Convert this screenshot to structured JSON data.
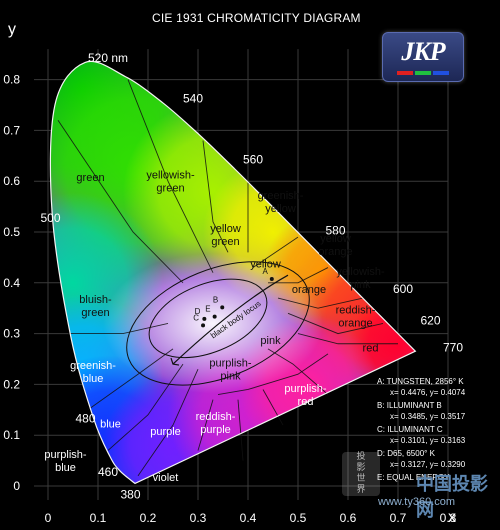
{
  "chart_data": {
    "type": "scatter",
    "title": "CIE 1931 CHROMATICITY DIAGRAM",
    "xlabel": "x",
    "ylabel": "y",
    "xlim": [
      0,
      0.8
    ],
    "ylim": [
      0,
      0.85
    ],
    "x_ticks": [
      "0",
      "0.1",
      "0.2",
      "0.3",
      "0.4",
      "0.5",
      "0.6",
      "0.7",
      "0.8"
    ],
    "y_ticks": [
      "0",
      "0.1",
      "0.2",
      "0.3",
      "0.4",
      "0.5",
      "0.6",
      "0.7",
      "0.8"
    ],
    "grid": true,
    "spectral_locus": [
      {
        "nm": 380,
        "x": 0.1741,
        "y": 0.005
      },
      {
        "nm": 460,
        "x": 0.144,
        "y": 0.0297
      },
      {
        "nm": 470,
        "x": 0.1241,
        "y": 0.0578
      },
      {
        "nm": 480,
        "x": 0.0913,
        "y": 0.1327
      },
      {
        "nm": 490,
        "x": 0.0454,
        "y": 0.295
      },
      {
        "nm": 500,
        "x": 0.0082,
        "y": 0.5384
      },
      {
        "nm": 510,
        "x": 0.0139,
        "y": 0.7502
      },
      {
        "nm": 520,
        "x": 0.0743,
        "y": 0.8338
      },
      {
        "nm": 530,
        "x": 0.1547,
        "y": 0.8059
      },
      {
        "nm": 540,
        "x": 0.2296,
        "y": 0.7543
      },
      {
        "nm": 550,
        "x": 0.3016,
        "y": 0.6923
      },
      {
        "nm": 560,
        "x": 0.3731,
        "y": 0.6245
      },
      {
        "nm": 570,
        "x": 0.4441,
        "y": 0.5547
      },
      {
        "nm": 580,
        "x": 0.5125,
        "y": 0.4866
      },
      {
        "nm": 590,
        "x": 0.5752,
        "y": 0.4242
      },
      {
        "nm": 600,
        "x": 0.627,
        "y": 0.3725
      },
      {
        "nm": 620,
        "x": 0.6915,
        "y": 0.3083
      },
      {
        "nm": 770,
        "x": 0.7347,
        "y": 0.2653
      }
    ],
    "wavelength_labels": [
      {
        "text": "520 nm",
        "x": 0.08,
        "y": 0.835
      },
      {
        "text": "540",
        "x": 0.27,
        "y": 0.755
      },
      {
        "text": "560",
        "x": 0.39,
        "y": 0.635
      },
      {
        "text": "580",
        "x": 0.555,
        "y": 0.495
      },
      {
        "text": "600",
        "x": 0.69,
        "y": 0.38
      },
      {
        "text": "620",
        "x": 0.745,
        "y": 0.318
      },
      {
        "text": "770",
        "x": 0.79,
        "y": 0.265
      },
      {
        "text": "500",
        "x": -0.015,
        "y": 0.52
      },
      {
        "text": "480",
        "x": 0.055,
        "y": 0.125
      },
      {
        "text": "460",
        "x": 0.1,
        "y": 0.02
      },
      {
        "text": "380",
        "x": 0.145,
        "y": -0.025
      }
    ],
    "regions": [
      {
        "name": "green",
        "x": 0.085,
        "y": 0.6
      },
      {
        "name": "yellowish-green",
        "x": 0.245,
        "y": 0.605
      },
      {
        "name": "yellow green",
        "x": 0.355,
        "y": 0.5
      },
      {
        "name": "greenish-yellow",
        "x": 0.465,
        "y": 0.565
      },
      {
        "name": "yellow",
        "x": 0.435,
        "y": 0.43
      },
      {
        "name": "yellow orange",
        "x": 0.575,
        "y": 0.48
      },
      {
        "name": "yellowish-pink",
        "x": 0.625,
        "y": 0.415
      },
      {
        "name": "orange",
        "x": 0.522,
        "y": 0.38
      },
      {
        "name": "reddish-orange",
        "x": 0.615,
        "y": 0.34
      },
      {
        "name": "bluish-green",
        "x": 0.095,
        "y": 0.36
      },
      {
        "name": "pink",
        "x": 0.445,
        "y": 0.28
      },
      {
        "name": "red",
        "x": 0.645,
        "y": 0.265
      },
      {
        "name": "purplish-pink",
        "x": 0.365,
        "y": 0.235
      },
      {
        "name": "purplish-red",
        "x": 0.515,
        "y": 0.185
      },
      {
        "name": "greenish-blue",
        "x": 0.09,
        "y": 0.23
      },
      {
        "name": "reddish-purple",
        "x": 0.335,
        "y": 0.13
      },
      {
        "name": "blue",
        "x": 0.125,
        "y": 0.115
      },
      {
        "name": "purple",
        "x": 0.235,
        "y": 0.1
      },
      {
        "name": "purplish-blue",
        "x": 0.035,
        "y": 0.055
      },
      {
        "name": "violet",
        "x": 0.235,
        "y": 0.01
      }
    ],
    "black_body_locus_label": "black body locus",
    "illuminant_points": [
      {
        "label": "A",
        "x": 0.4476,
        "y": 0.4074
      },
      {
        "label": "B",
        "x": 0.3485,
        "y": 0.3517
      },
      {
        "label": "C",
        "x": 0.3101,
        "y": 0.3163
      },
      {
        "label": "D",
        "x": 0.3127,
        "y": 0.329
      },
      {
        "label": "E",
        "x": 0.3333,
        "y": 0.3333
      }
    ],
    "legend": [
      {
        "title": "A:  TUNGSTEN, 2856° K",
        "coords": "x= 0.4476, y= 0.4074"
      },
      {
        "title": "B:  ILLUMINANT B",
        "coords": "x= 0.3485, y= 0.3517"
      },
      {
        "title": "C:  ILLUMINANT C",
        "coords": "x= 0.3101, y= 0.3163"
      },
      {
        "title": "D:  D65, 6500° K",
        "coords": "x= 0.3127, y= 0.3290"
      },
      {
        "title": "E:  EQUAL ENERGY",
        "coords": ""
      }
    ],
    "legend_placement": "bottom-right"
  },
  "logo_text": "JKP",
  "logo_bar_colors": [
    "#e02020",
    "#20c040",
    "#2050e0"
  ],
  "watermark": {
    "site": "www.ty360.com",
    "cn": "中国投影网",
    "seal": "投影\n世界"
  }
}
